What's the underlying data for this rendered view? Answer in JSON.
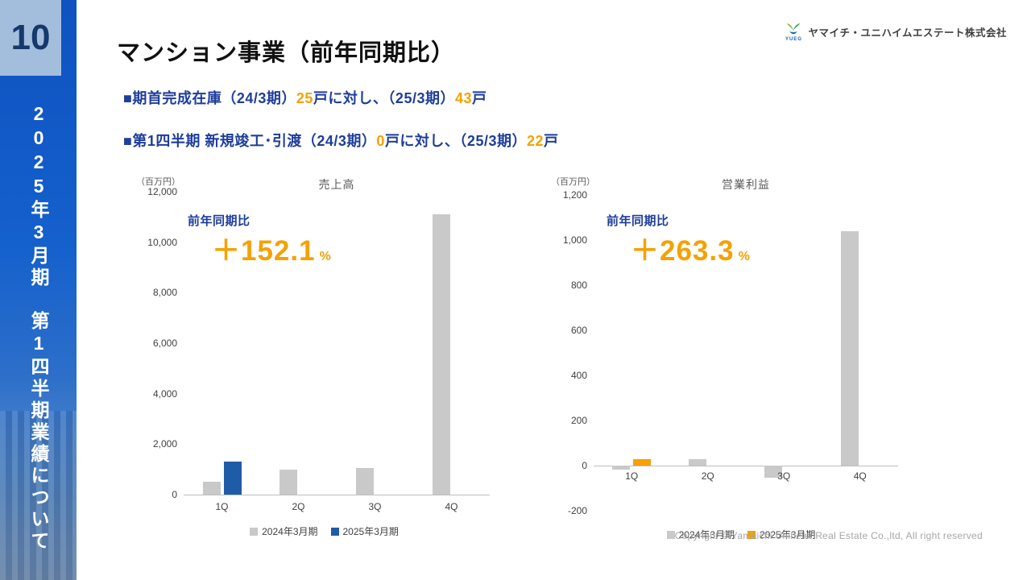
{
  "sidebar": {
    "page_number": "10",
    "vertical_title": "2025年3月期　第1四半期業績について"
  },
  "header": {
    "title": "マンション事業（前年同期比）",
    "logo_text": "YUEG",
    "company_name": "ヤマイチ・ユニハイムエステート株式会社"
  },
  "bullets": {
    "b1": {
      "p1": "■期首完成在庫（24/3期）",
      "n1": "25",
      "p2": "戸に対し、（25/3期）",
      "n2": "43",
      "p3": "戸"
    },
    "b2": {
      "p1": "■第1四半期 新規竣工･引渡（24/3期）",
      "n1": "0",
      "p2": "戸に対し、（25/3期）",
      "n2": "22",
      "p3": "戸"
    }
  },
  "chart_data": [
    {
      "type": "bar",
      "title": "売上高",
      "unit_label": "（百万円）",
      "categories": [
        "1Q",
        "2Q",
        "3Q",
        "4Q"
      ],
      "series": [
        {
          "name": "2024年3月期",
          "color": "#c9c9c9",
          "values": [
            516,
            1000,
            1060,
            11100
          ]
        },
        {
          "name": "2025年3月期",
          "color": "#1f5ca8",
          "values": [
            1301,
            null,
            null,
            null
          ]
        }
      ],
      "ylim": [
        0,
        12000
      ],
      "yticks": [
        "12,000",
        "10,000",
        "8,000",
        "6,000",
        "4,000",
        "2,000",
        "0"
      ],
      "legend_position": "bottom",
      "grid": false,
      "annotation": {
        "label": "前年同期比",
        "value": "＋152.1",
        "suffix": "%"
      }
    },
    {
      "type": "bar",
      "title": "営業利益",
      "unit_label": "（百万円）",
      "categories": [
        "1Q",
        "2Q",
        "3Q",
        "4Q"
      ],
      "series": [
        {
          "name": "2024年3月期",
          "color": "#c9c9c9",
          "values": [
            -18,
            30,
            -55,
            1040
          ]
        },
        {
          "name": "2025年3月期",
          "color": "#f5a100",
          "values": [
            29,
            null,
            null,
            null
          ]
        }
      ],
      "ylim": [
        -200,
        1200
      ],
      "yticks": [
        "1,200",
        "1,000",
        "800",
        "600",
        "400",
        "200",
        "0",
        "-200"
      ],
      "legend_position": "bottom",
      "grid": false,
      "annotation": {
        "label": "前年同期比",
        "value": "＋263.3",
        "suffix": "%"
      }
    }
  ],
  "footer": {
    "copyright": "Copyright ©  Yamaichi Uniheim Real Estate Co.,ltd, All right reserved"
  }
}
